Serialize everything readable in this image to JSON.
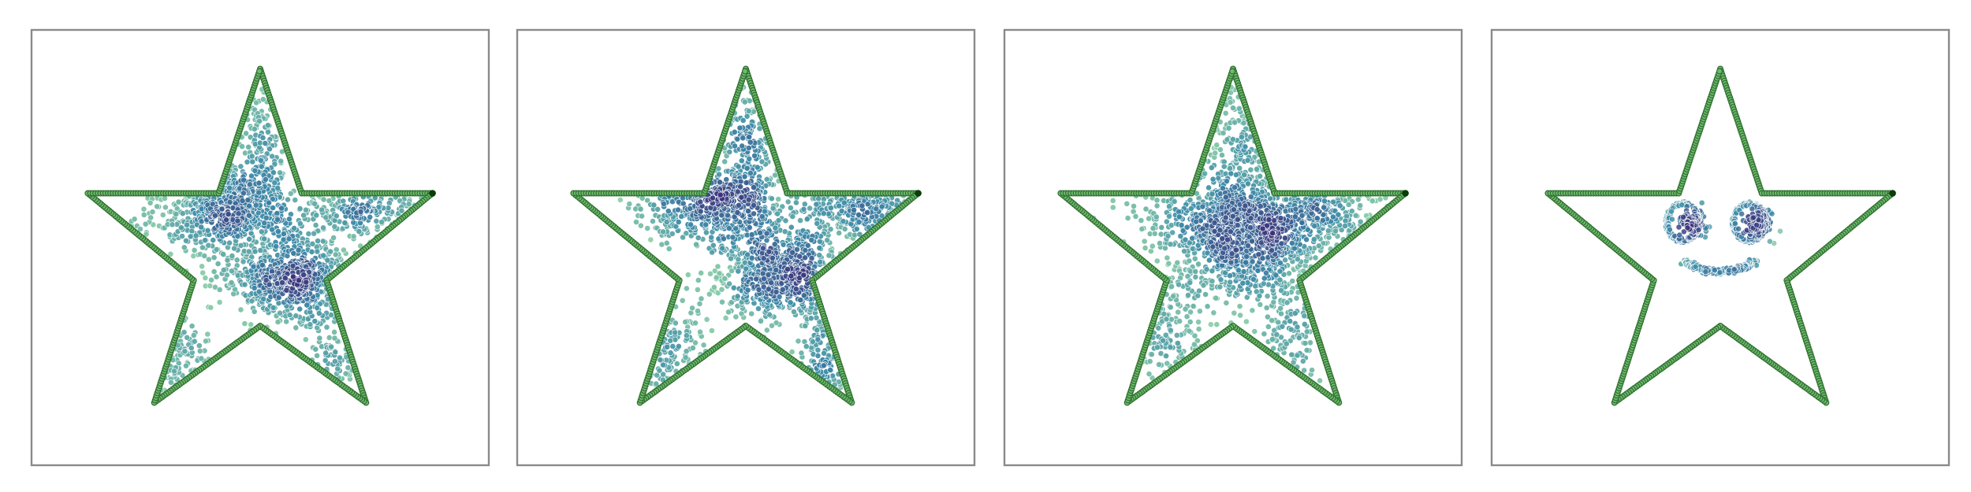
{
  "figure": {
    "panel_count": 4,
    "colors": {
      "outline_edge": "#2f6f2f",
      "outline_fill": "#6fba6f",
      "endpoint": "#0b3d0b",
      "frame": "#8a8a8a",
      "density_low": "#8fd1a8",
      "density_mid": "#3d8ba8",
      "density_high": "#3b2f7a"
    }
  },
  "chart_data": [
    {
      "type": "scatter",
      "panel": 1,
      "title": "",
      "xlabel": "",
      "ylabel": "",
      "xlim": [
        -1.05,
        1.05
      ],
      "ylim": [
        -1.05,
        1.05
      ],
      "grid": false,
      "axis_ticks": false,
      "outline": {
        "shape": "five-point star",
        "vertices": [
          [
            0.0,
            0.9
          ],
          [
            0.2,
            0.3
          ],
          [
            0.83,
            0.3
          ],
          [
            0.32,
            -0.12
          ],
          [
            0.51,
            -0.71
          ],
          [
            0.0,
            -0.34
          ],
          [
            -0.51,
            -0.71
          ],
          [
            -0.32,
            -0.12
          ],
          [
            -0.83,
            0.3
          ],
          [
            -0.2,
            0.3
          ]
        ],
        "endpoint": [
          0.83,
          0.3
        ]
      },
      "clusters": [
        {
          "center": [
            -0.16,
            0.22
          ],
          "spread": [
            0.18,
            0.11
          ],
          "weight": 0.36
        },
        {
          "center": [
            0.16,
            -0.11
          ],
          "spread": [
            0.16,
            0.11
          ],
          "weight": 0.33
        },
        {
          "center": [
            0.55,
            0.2
          ],
          "spread": [
            0.16,
            0.07
          ],
          "weight": 0.12
        },
        {
          "center": [
            0.0,
            0.54
          ],
          "spread": [
            0.05,
            0.17
          ],
          "weight": 0.08
        },
        {
          "center": [
            -0.4,
            -0.48
          ],
          "spread": [
            0.08,
            0.1
          ],
          "weight": 0.06
        },
        {
          "center": [
            0.37,
            -0.47
          ],
          "spread": [
            0.06,
            0.12
          ],
          "weight": 0.05
        }
      ],
      "n_points": 1800
    },
    {
      "type": "scatter",
      "panel": 2,
      "title": "",
      "xlabel": "",
      "ylabel": "",
      "xlim": [
        -1.05,
        1.05
      ],
      "ylim": [
        -1.05,
        1.05
      ],
      "grid": false,
      "axis_ticks": false,
      "outline": {
        "shape": "five-point star",
        "vertices": [
          [
            0.0,
            0.9
          ],
          [
            0.2,
            0.3
          ],
          [
            0.83,
            0.3
          ],
          [
            0.32,
            -0.12
          ],
          [
            0.51,
            -0.71
          ],
          [
            0.0,
            -0.34
          ],
          [
            -0.51,
            -0.71
          ],
          [
            -0.32,
            -0.12
          ],
          [
            -0.83,
            0.3
          ],
          [
            -0.2,
            0.3
          ]
        ],
        "endpoint": [
          0.83,
          0.3
        ]
      },
      "clusters": [
        {
          "center": [
            -0.13,
            0.24
          ],
          "spread": [
            0.17,
            0.1
          ],
          "weight": 0.3
        },
        {
          "center": [
            0.16,
            -0.1
          ],
          "spread": [
            0.15,
            0.12
          ],
          "weight": 0.32
        },
        {
          "center": [
            0.55,
            0.22
          ],
          "spread": [
            0.16,
            0.06
          ],
          "weight": 0.13
        },
        {
          "center": [
            0.0,
            0.56
          ],
          "spread": [
            0.06,
            0.17
          ],
          "weight": 0.09
        },
        {
          "center": [
            -0.37,
            -0.44
          ],
          "spread": [
            0.1,
            0.12
          ],
          "weight": 0.09
        },
        {
          "center": [
            0.38,
            -0.46
          ],
          "spread": [
            0.06,
            0.12
          ],
          "weight": 0.07
        }
      ],
      "n_points": 1800
    },
    {
      "type": "scatter",
      "panel": 3,
      "title": "",
      "xlabel": "",
      "ylabel": "",
      "xlim": [
        -1.05,
        1.05
      ],
      "ylim": [
        -1.05,
        1.05
      ],
      "grid": false,
      "axis_ticks": false,
      "outline": {
        "shape": "five-point star",
        "vertices": [
          [
            0.0,
            0.9
          ],
          [
            0.2,
            0.3
          ],
          [
            0.83,
            0.3
          ],
          [
            0.32,
            -0.12
          ],
          [
            0.51,
            -0.71
          ],
          [
            0.0,
            -0.34
          ],
          [
            -0.51,
            -0.71
          ],
          [
            -0.32,
            -0.12
          ],
          [
            -0.83,
            0.3
          ],
          [
            -0.2,
            0.3
          ]
        ],
        "endpoint": [
          0.83,
          0.3
        ]
      },
      "clusters": [
        {
          "center": [
            -0.05,
            0.2
          ],
          "spread": [
            0.22,
            0.13
          ],
          "weight": 0.3
        },
        {
          "center": [
            0.12,
            0.03
          ],
          "spread": [
            0.2,
            0.13
          ],
          "weight": 0.3
        },
        {
          "center": [
            0.43,
            0.18
          ],
          "spread": [
            0.18,
            0.09
          ],
          "weight": 0.14
        },
        {
          "center": [
            0.02,
            0.52
          ],
          "spread": [
            0.06,
            0.17
          ],
          "weight": 0.08
        },
        {
          "center": [
            -0.32,
            -0.36
          ],
          "spread": [
            0.12,
            0.14
          ],
          "weight": 0.1
        },
        {
          "center": [
            0.3,
            -0.42
          ],
          "spread": [
            0.1,
            0.13
          ],
          "weight": 0.08
        }
      ],
      "n_points": 1800
    },
    {
      "type": "scatter",
      "panel": 4,
      "title": "",
      "xlabel": "",
      "ylabel": "",
      "xlim": [
        -1.05,
        1.05
      ],
      "ylim": [
        -1.05,
        1.05
      ],
      "grid": false,
      "axis_ticks": false,
      "outline": {
        "shape": "five-point star",
        "vertices": [
          [
            0.0,
            0.9
          ],
          [
            0.2,
            0.3
          ],
          [
            0.83,
            0.3
          ],
          [
            0.32,
            -0.12
          ],
          [
            0.51,
            -0.71
          ],
          [
            0.0,
            -0.34
          ],
          [
            -0.51,
            -0.71
          ],
          [
            -0.32,
            -0.12
          ],
          [
            -0.83,
            0.3
          ],
          [
            -0.2,
            0.3
          ]
        ],
        "endpoint": [
          0.83,
          0.3
        ]
      },
      "face": {
        "eyes": [
          {
            "center": [
              -0.16,
              0.16
            ],
            "ring_radius": 0.09,
            "core_radius": 0.035
          },
          {
            "center": [
              0.16,
              0.16
            ],
            "ring_radius": 0.09,
            "core_radius": 0.035
          }
        ],
        "smile": {
          "center": [
            0.0,
            0.02
          ],
          "radius": 0.18,
          "start_deg": 205,
          "end_deg": 335
        }
      },
      "n_points": 700
    }
  ]
}
